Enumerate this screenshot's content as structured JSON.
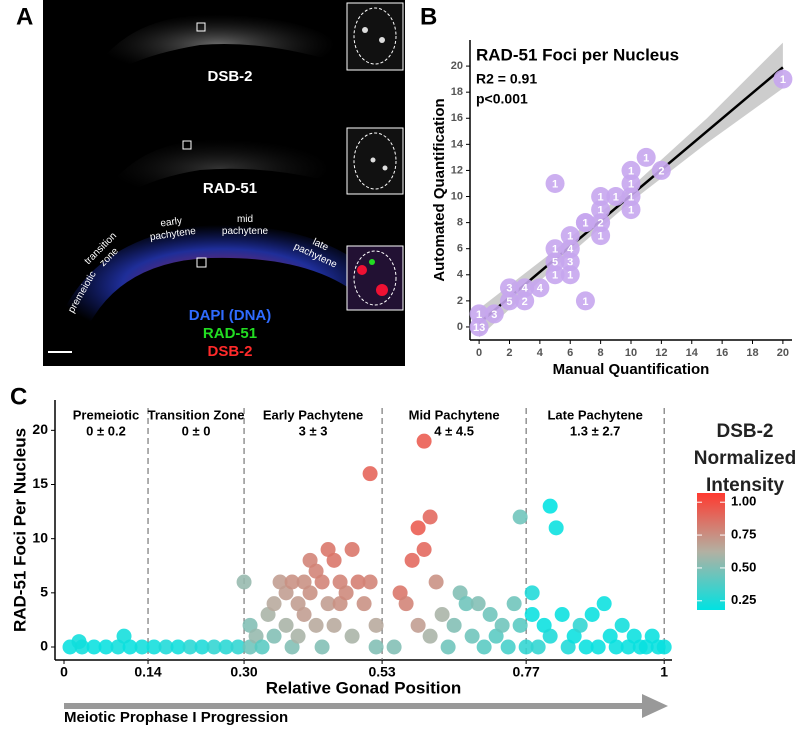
{
  "panel_labels": [
    "A",
    "B",
    "C"
  ],
  "image_panel": {
    "channel_labels": [
      "DSB-2",
      "RAD-51"
    ],
    "stage_labels": [
      [
        "premeiotic"
      ],
      [
        "transition",
        "zone"
      ],
      [
        "early",
        "pachytene"
      ],
      [
        "mid",
        "pachytene"
      ],
      [
        "late",
        "pachytene"
      ]
    ],
    "legend": [
      {
        "label": "DAPI (DNA)",
        "color": "#2f6bff"
      },
      {
        "label": "RAD-51",
        "color": "#22dd22"
      },
      {
        "label": "DSB-2",
        "color": "#ff2a2a"
      }
    ]
  },
  "chart_data": [
    {
      "type": "scatter",
      "title": "RAD-51 Foci per Nucleus",
      "annotations": [
        "R2 = 0.91",
        "p<0.001"
      ],
      "x_label": "Manual Quantification",
      "y_label": "Automated Quantification",
      "xlim": [
        -0.6,
        20.6
      ],
      "ylim": [
        -1,
        22
      ],
      "xticks": [
        0,
        2,
        4,
        6,
        8,
        10,
        12,
        14,
        16,
        18,
        20
      ],
      "yticks": [
        0,
        2,
        4,
        6,
        8,
        10,
        12,
        14,
        16,
        18,
        20
      ],
      "band": {
        "x": [
          0,
          5,
          10,
          15,
          20
        ],
        "lower": [
          -0.8,
          4.6,
          9.6,
          14.1,
          18.3
        ],
        "upper": [
          1.4,
          5.9,
          10.7,
          16.0,
          21.8
        ],
        "color": "#c4c4c4"
      },
      "fit": {
        "x": [
          0,
          20
        ],
        "values": [
          0.3,
          19.9
        ],
        "color": "#000000"
      },
      "series": [
        {
          "color": "#c6a6ee",
          "x": [
            0,
            0,
            1,
            2,
            2,
            3,
            3,
            4,
            5,
            5,
            6,
            5,
            6,
            6,
            6,
            5,
            7,
            7,
            8,
            8,
            8,
            8,
            9,
            10,
            10,
            10,
            10,
            11,
            12,
            20,
            7
          ],
          "values": [
            0,
            1,
            1,
            2,
            3,
            2,
            3,
            3,
            4,
            5,
            5,
            6,
            4,
            6,
            7,
            11,
            8,
            2,
            7,
            9,
            10,
            8,
            10,
            9,
            10,
            11,
            12,
            13,
            12,
            19,
            8
          ],
          "point_labels": [
            13,
            1,
            3,
            5,
            3,
            2,
            4,
            4,
            1,
            5,
            3,
            1,
            1,
            4,
            1,
            1,
            3,
            1,
            1,
            1,
            1,
            2,
            1,
            1,
            1,
            1,
            1,
            1,
            2,
            1,
            1
          ]
        }
      ]
    },
    {
      "type": "scatter",
      "x_label": "Relative Gonad Position",
      "y_label": "RAD-51 Foci Per Nucleus",
      "xlim": [
        -0.015,
        1.013
      ],
      "ylim": [
        -1.2,
        22.8
      ],
      "xticks": [
        0,
        0.14,
        {
          "value": 0.3,
          "label": "0.30"
        },
        0.53,
        0.77,
        1
      ],
      "yticks": [
        0,
        5,
        10,
        15,
        20
      ],
      "stages": [
        {
          "name": "Premeiotic",
          "stat": "0 ± 0.2"
        },
        {
          "name": "Transition Zone",
          "stat": "0 ± 0"
        },
        {
          "name": "Early Pachytene",
          "stat": "3 ± 3"
        },
        {
          "name": "Mid Pachytene",
          "stat": "4 ± 4.5"
        },
        {
          "name": "Late Pachytene",
          "stat": "1.3 ± 2.7"
        }
      ],
      "arrow_label": "Meiotic Prophase I Progression",
      "colorbar": {
        "title": [
          "DSB-2",
          "Normalized",
          "Intensity"
        ],
        "lim": [
          0.18,
          1.07
        ],
        "ticks": [
          {
            "value": 0.25,
            "label": "0.25"
          },
          {
            "value": 0.5,
            "label": "0.50"
          },
          {
            "value": 0.75,
            "label": "0.75"
          },
          {
            "value": 1,
            "label": "1.00"
          }
        ],
        "colors": [
          "#00e2e2",
          "#b3b0a2",
          "#ff3a30"
        ]
      },
      "series": [
        {
          "x": [
            0.01,
            0.03,
            0.05,
            0.07,
            0.09,
            0.11,
            0.13,
            0.025,
            0.1,
            0.15,
            0.17,
            0.19,
            0.21,
            0.23,
            0.25,
            0.27,
            0.29,
            0.3,
            0.31,
            0.31,
            0.32,
            0.33,
            0.34,
            0.35,
            0.35,
            0.36,
            0.37,
            0.37,
            0.38,
            0.38,
            0.39,
            0.39,
            0.4,
            0.4,
            0.41,
            0.41,
            0.42,
            0.42,
            0.43,
            0.43,
            0.44,
            0.44,
            0.45,
            0.45,
            0.46,
            0.46,
            0.47,
            0.48,
            0.48,
            0.49,
            0.5,
            0.51,
            0.51,
            0.52,
            0.52,
            0.55,
            0.56,
            0.57,
            0.58,
            0.59,
            0.59,
            0.6,
            0.6,
            0.61,
            0.61,
            0.62,
            0.63,
            0.64,
            0.65,
            0.66,
            0.67,
            0.68,
            0.69,
            0.7,
            0.71,
            0.72,
            0.73,
            0.74,
            0.75,
            0.76,
            0.76,
            0.77,
            0.78,
            0.78,
            0.79,
            0.8,
            0.81,
            0.81,
            0.82,
            0.83,
            0.84,
            0.85,
            0.86,
            0.87,
            0.88,
            0.89,
            0.9,
            0.91,
            0.92,
            0.93,
            0.94,
            0.95,
            0.96,
            0.97,
            0.98,
            0.99,
            1.0
          ],
          "values": [
            0,
            0,
            0,
            0,
            0,
            0,
            0,
            0.5,
            1,
            0,
            0,
            0,
            0,
            0,
            0,
            0,
            0,
            6,
            2,
            0,
            1,
            0,
            3,
            4,
            1,
            6,
            2,
            5,
            6,
            0,
            4,
            1,
            6,
            3,
            8,
            5,
            2,
            7,
            6,
            0,
            9,
            4,
            8,
            2,
            6,
            4,
            5,
            9,
            1,
            6,
            4,
            16,
            6,
            2,
            0,
            0,
            5,
            4,
            8,
            11,
            2,
            19,
            9,
            12,
            1,
            6,
            3,
            0,
            2,
            5,
            4,
            1,
            4,
            0,
            3,
            1,
            2,
            0,
            4,
            12,
            2,
            0,
            3,
            5,
            0,
            2,
            1,
            13,
            11,
            3,
            0,
            1,
            2,
            0,
            3,
            0,
            4,
            1,
            0,
            2,
            0,
            1,
            0,
            0,
            1,
            0,
            0
          ],
          "intensity": [
            0.2,
            0.22,
            0.2,
            0.2,
            0.22,
            0.2,
            0.22,
            0.22,
            0.22,
            0.22,
            0.25,
            0.22,
            0.28,
            0.25,
            0.3,
            0.28,
            0.3,
            0.55,
            0.5,
            0.45,
            0.55,
            0.4,
            0.6,
            0.65,
            0.5,
            0.7,
            0.6,
            0.7,
            0.75,
            0.5,
            0.7,
            0.6,
            0.75,
            0.7,
            0.8,
            0.75,
            0.65,
            0.8,
            0.8,
            0.5,
            0.85,
            0.7,
            0.85,
            0.65,
            0.8,
            0.75,
            0.78,
            0.85,
            0.6,
            0.82,
            0.75,
            0.92,
            0.8,
            0.65,
            0.5,
            0.5,
            0.85,
            0.8,
            0.9,
            0.95,
            0.7,
            0.95,
            0.9,
            0.9,
            0.6,
            0.75,
            0.6,
            0.45,
            0.5,
            0.5,
            0.45,
            0.45,
            0.5,
            0.4,
            0.45,
            0.4,
            0.45,
            0.35,
            0.45,
            0.45,
            0.4,
            0.3,
            0.2,
            0.25,
            0.3,
            0.2,
            0.25,
            0.18,
            0.2,
            0.2,
            0.25,
            0.2,
            0.3,
            0.2,
            0.2,
            0.2,
            0.2,
            0.2,
            0.2,
            0.22,
            0.2,
            0.2,
            0.2,
            0.2,
            0.2,
            0.2,
            0.2
          ]
        }
      ]
    }
  ]
}
